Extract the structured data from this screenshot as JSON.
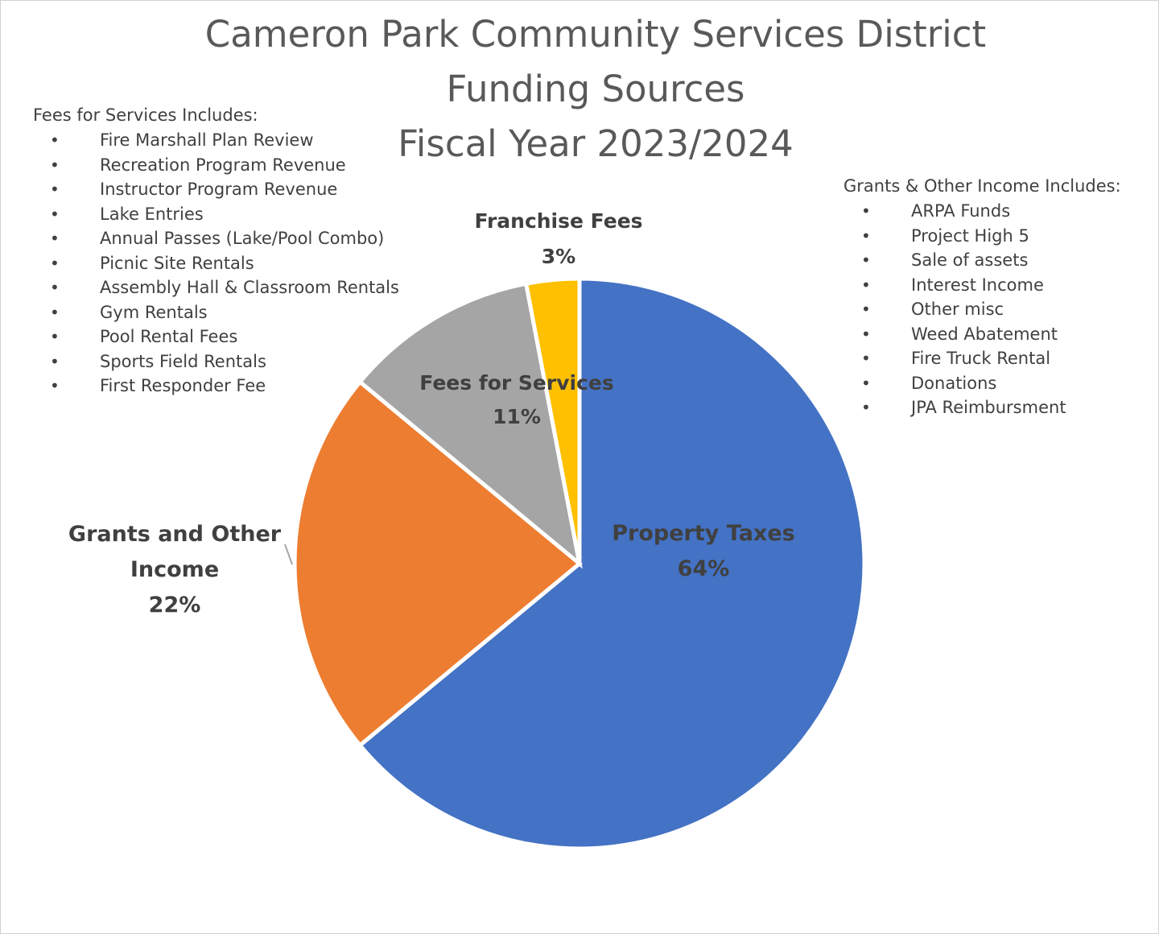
{
  "title": {
    "line1": "Cameron Park Community Services District",
    "line2": "Funding Sources",
    "line3": "Fiscal Year 2023/2024"
  },
  "notes": {
    "fees": {
      "heading": "Fees for Services Includes:",
      "items": [
        "Fire Marshall Plan Review",
        "Recreation Program Revenue",
        "Instructor Program Revenue",
        "Lake Entries",
        "Annual Passes (Lake/Pool Combo)",
        "Picnic Site Rentals",
        "Assembly Hall & Classroom Rentals",
        "Gym Rentals",
        "Pool Rental Fees",
        "Sports Field Rentals",
        "First Responder Fee"
      ]
    },
    "grants": {
      "heading": "Grants & Other Income Includes:",
      "items": [
        "ARPA Funds",
        "Project High 5",
        "Sale of assets",
        "Interest Income",
        "Other misc",
        "Weed Abatement",
        "Fire Truck Rental",
        "Donations",
        "JPA Reimbursment"
      ]
    }
  },
  "chart_data": {
    "type": "pie",
    "title": "Cameron Park Community Services District Funding Sources Fiscal Year 2023/2024",
    "start_angle_deg": 0,
    "direction": "clockwise",
    "slices": [
      {
        "label": "Property Taxes",
        "value": 64,
        "percent_label": "64%",
        "color": "#4472C4"
      },
      {
        "label": "Grants and Other Income",
        "value": 22,
        "percent_label": "22%",
        "color": "#ED7D31"
      },
      {
        "label": "Fees for Services",
        "value": 11,
        "percent_label": "11%",
        "color": "#A5A5A5"
      },
      {
        "label": "Franchise Fees",
        "value": 3,
        "percent_label": "3%",
        "color": "#FFC000"
      }
    ],
    "data_labels": {
      "property_taxes": {
        "lines": [
          "Property Taxes",
          "64%"
        ]
      },
      "grants": {
        "lines": [
          "Grants and Other",
          "Income",
          "22%"
        ]
      },
      "fees": {
        "lines": [
          "Fees for Services",
          "11%"
        ]
      },
      "franchise": {
        "lines": [
          "Franchise Fees",
          "3%"
        ]
      }
    },
    "legend": "none"
  }
}
